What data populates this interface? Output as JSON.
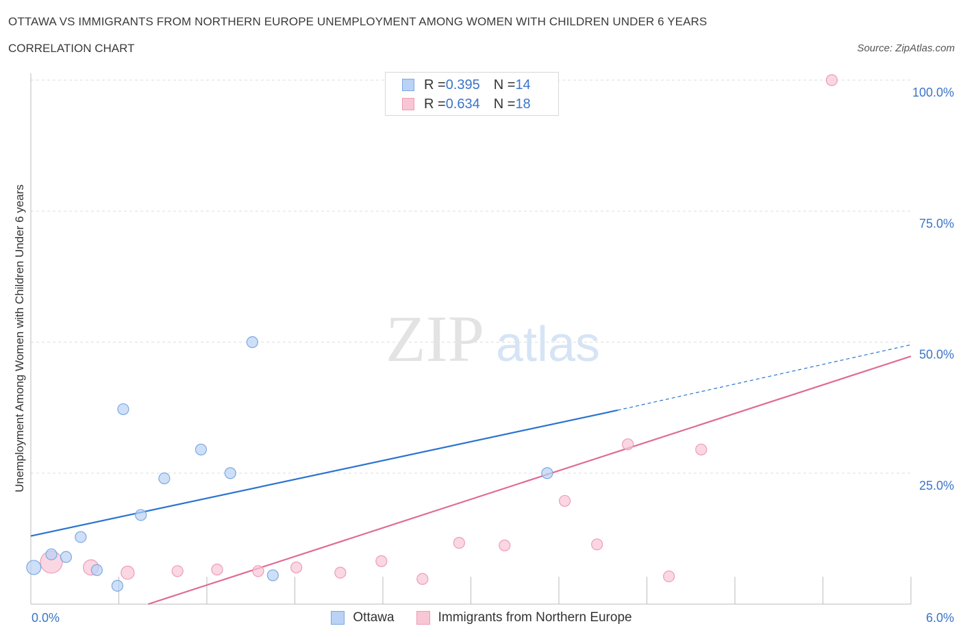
{
  "header": {
    "title": "OTTAWA VS IMMIGRANTS FROM NORTHERN EUROPE UNEMPLOYMENT AMONG WOMEN WITH CHILDREN UNDER 6 YEARS",
    "subtitle": "CORRELATION CHART",
    "source": "Source: ZipAtlas.com"
  },
  "watermark": {
    "zip": "ZIP",
    "atlas": "atlas"
  },
  "legend": {
    "rows": [
      {
        "r_label": "R = ",
        "r_value": "0.395",
        "n_label": "N = ",
        "n_value": "14"
      },
      {
        "r_label": "R = ",
        "r_value": "0.634",
        "n_label": "N = ",
        "n_value": "18"
      }
    ]
  },
  "colors": {
    "ottawa_fill": "#b9d2f5",
    "ottawa_stroke": "#7aa8e0",
    "ottawa_line": "#2a72d0",
    "immig_fill": "#f8c6d5",
    "immig_stroke": "#ee9bb6",
    "immig_line": "#e06a94",
    "axis_label": "#3a74c9",
    "grid": "#dddddd"
  },
  "chart_data": {
    "type": "scatter",
    "title": "OTTAWA VS IMMIGRANTS FROM NORTHERN EUROPE UNEMPLOYMENT AMONG WOMEN WITH CHILDREN UNDER 6 YEARS",
    "xlabel": "",
    "ylabel": "Unemployment Among Women with Children Under 6 years",
    "xlim": [
      0,
      6
    ],
    "ylim": [
      0,
      100
    ],
    "x_tick_labels": [
      "0.0%",
      "6.0%"
    ],
    "y_tick_labels": [
      "100.0%",
      "75.0%",
      "50.0%",
      "25.0%"
    ],
    "y_ticks": [
      100,
      75,
      50,
      25
    ],
    "grid": true,
    "series": [
      {
        "name": "Ottawa",
        "r": 0.395,
        "n": 14,
        "points": [
          {
            "x": 0.02,
            "y": 7.0,
            "s": 1.3
          },
          {
            "x": 0.14,
            "y": 9.5,
            "s": 1.0
          },
          {
            "x": 0.24,
            "y": 9.0,
            "s": 1.0
          },
          {
            "x": 0.34,
            "y": 12.8,
            "s": 1.0
          },
          {
            "x": 0.45,
            "y": 6.5,
            "s": 1.0
          },
          {
            "x": 0.59,
            "y": 3.5,
            "s": 1.0
          },
          {
            "x": 0.63,
            "y": 37.2,
            "s": 1.0
          },
          {
            "x": 0.75,
            "y": 17.0,
            "s": 1.0
          },
          {
            "x": 0.91,
            "y": 24.0,
            "s": 1.0
          },
          {
            "x": 1.16,
            "y": 29.5,
            "s": 1.0
          },
          {
            "x": 1.36,
            "y": 25.0,
            "s": 1.0
          },
          {
            "x": 1.51,
            "y": 50.0,
            "s": 1.0
          },
          {
            "x": 1.65,
            "y": 5.5,
            "s": 1.0
          },
          {
            "x": 3.52,
            "y": 25.0,
            "s": 1.0
          }
        ],
        "trend": {
          "x0": 0,
          "y0": 13.0,
          "x1": 4.0,
          "y1": 37.0,
          "dash_to_x": 6.0,
          "dash_to_y": 49.5
        }
      },
      {
        "name": "Immigrants from Northern Europe",
        "r": 0.634,
        "n": 18,
        "points": [
          {
            "x": 0.14,
            "y": 8.0,
            "s": 2.0
          },
          {
            "x": 0.41,
            "y": 7.0,
            "s": 1.4
          },
          {
            "x": 0.66,
            "y": 6.0,
            "s": 1.2
          },
          {
            "x": 1.0,
            "y": 6.3,
            "s": 1.0
          },
          {
            "x": 1.27,
            "y": 6.6,
            "s": 1.0
          },
          {
            "x": 1.55,
            "y": 6.3,
            "s": 1.0
          },
          {
            "x": 1.81,
            "y": 7.0,
            "s": 1.0
          },
          {
            "x": 2.11,
            "y": 6.0,
            "s": 1.0
          },
          {
            "x": 2.39,
            "y": 8.2,
            "s": 1.0
          },
          {
            "x": 2.67,
            "y": 4.8,
            "s": 1.0
          },
          {
            "x": 2.92,
            "y": 11.7,
            "s": 1.0
          },
          {
            "x": 3.23,
            "y": 11.2,
            "s": 1.0
          },
          {
            "x": 3.64,
            "y": 19.7,
            "s": 1.0
          },
          {
            "x": 3.86,
            "y": 11.4,
            "s": 1.0
          },
          {
            "x": 4.07,
            "y": 30.5,
            "s": 1.0
          },
          {
            "x": 4.35,
            "y": 5.3,
            "s": 1.0
          },
          {
            "x": 4.57,
            "y": 29.5,
            "s": 1.0
          },
          {
            "x": 5.46,
            "y": 100.0,
            "s": 1.0
          }
        ],
        "trend": {
          "x0": 0.8,
          "y0": 0,
          "x1": 6.0,
          "y1": 47.3
        }
      }
    ]
  },
  "bottom_legend": [
    {
      "label": "Ottawa"
    },
    {
      "label": "Immigrants from Northern Europe"
    }
  ]
}
